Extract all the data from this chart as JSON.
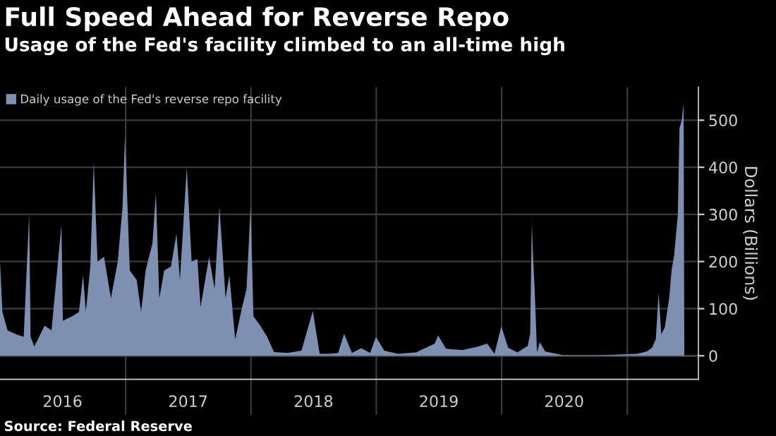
{
  "chart_data": {
    "type": "area",
    "title": "Full Speed Ahead for Reverse Repo",
    "subtitle": "Usage of the Fed's facility climbed to an all-time high",
    "ylabel": "Dollars (Billions)",
    "annotations": [
      "Source: Federal Reserve"
    ],
    "legend": "top left",
    "grid": true,
    "xlim": [
      "2016-01-01",
      "2021-07-27"
    ],
    "ylim": [
      -50,
      570
    ],
    "yticks": [
      0,
      100,
      200,
      300,
      400,
      500
    ],
    "xticks": [
      {
        "value": "2016-07-01",
        "label": "2016"
      },
      {
        "value": "2017-01-01",
        "label": null
      },
      {
        "value": "2017-07-02",
        "label": "2017"
      },
      {
        "value": "2018-01-01",
        "label": null
      },
      {
        "value": "2018-07-02",
        "label": "2018"
      },
      {
        "value": "2019-01-01",
        "label": null
      },
      {
        "value": "2019-07-02",
        "label": "2019"
      },
      {
        "value": "2020-01-01",
        "label": null
      },
      {
        "value": "2020-07-01",
        "label": "2020"
      },
      {
        "value": "2021-01-01",
        "label": null
      }
    ],
    "series": [
      {
        "name": "Daily usage of the Fed's reverse repo facility",
        "color": "#7d90b2",
        "x": [
          "2016-01-01",
          "2016-01-08",
          "2016-01-23",
          "2016-02-19",
          "2016-03-10",
          "2016-03-26",
          "2016-03-30",
          "2016-04-10",
          "2016-05-10",
          "2016-05-30",
          "2016-06-28",
          "2016-07-02",
          "2016-07-29",
          "2016-08-18",
          "2016-08-30",
          "2016-09-07",
          "2016-09-20",
          "2016-09-30",
          "2016-10-11",
          "2016-10-30",
          "2016-11-19",
          "2016-12-09",
          "2016-12-23",
          "2016-12-30",
          "2017-01-13",
          "2017-02-02",
          "2017-02-15",
          "2017-02-28",
          "2017-03-20",
          "2017-03-30",
          "2017-04-09",
          "2017-04-23",
          "2017-05-13",
          "2017-05-29",
          "2017-06-08",
          "2017-06-28",
          "2017-07-12",
          "2017-07-29",
          "2017-08-07",
          "2017-09-01",
          "2017-09-17",
          "2017-10-01",
          "2017-10-19",
          "2017-10-30",
          "2017-11-16",
          "2017-12-06",
          "2017-12-19",
          "2017-12-31",
          "2018-01-08",
          "2018-01-28",
          "2018-02-17",
          "2018-03-09",
          "2018-04-18",
          "2018-05-28",
          "2018-06-30",
          "2018-07-20",
          "2018-08-16",
          "2018-09-12",
          "2018-09-29",
          "2018-10-22",
          "2018-11-18",
          "2018-12-14",
          "2018-12-31",
          "2019-01-24",
          "2019-03-05",
          "2019-04-27",
          "2019-06-20",
          "2019-06-30",
          "2019-07-23",
          "2019-09-08",
          "2019-10-22",
          "2019-11-20",
          "2019-12-11",
          "2019-12-31",
          "2020-01-20",
          "2020-02-16",
          "2020-03-17",
          "2020-03-24",
          "2020-03-29",
          "2020-04-02",
          "2020-04-06",
          "2020-04-13",
          "2020-04-21",
          "2020-05-07",
          "2020-06-29",
          "2020-10-14",
          "2021-01-30",
          "2021-02-26",
          "2021-03-14",
          "2021-03-25",
          "2021-04-02",
          "2021-04-10",
          "2021-04-20",
          "2021-05-03",
          "2021-05-10",
          "2021-05-17",
          "2021-05-28",
          "2021-06-02",
          "2021-06-09",
          "2021-06-14",
          "2021-06-16"
        ],
        "values": [
          200,
          93,
          54,
          45,
          40,
          302,
          40,
          20,
          64,
          54,
          278,
          74,
          84,
          93,
          171,
          93,
          190,
          411,
          200,
          210,
          122,
          200,
          317,
          467,
          181,
          161,
          93,
          181,
          239,
          346,
          122,
          181,
          190,
          259,
          161,
          400,
          200,
          205,
          103,
          210,
          142,
          317,
          122,
          171,
          35,
          103,
          142,
          319,
          84,
          64,
          40,
          8,
          6,
          11,
          95,
          4,
          4,
          6,
          47,
          6,
          16,
          6,
          40,
          11,
          4,
          7,
          26,
          43,
          15,
          12,
          19,
          26,
          4,
          62,
          17,
          7,
          21,
          46,
          284,
          201,
          143,
          7,
          29,
          9,
          1,
          1,
          4,
          9,
          17,
          36,
          133,
          46,
          60,
          123,
          182,
          211,
          298,
          483,
          502,
          537,
          0
        ]
      }
    ]
  }
}
